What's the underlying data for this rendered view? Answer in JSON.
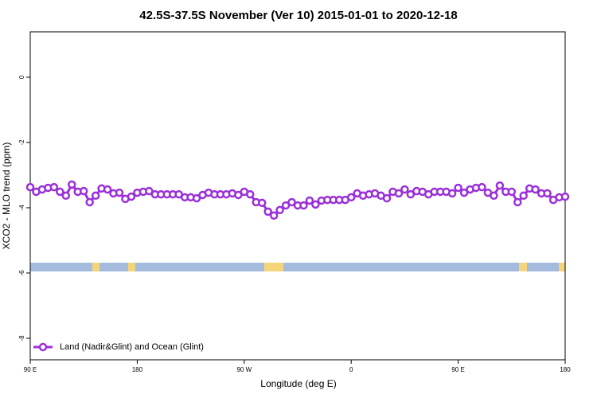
{
  "chart_data": {
    "type": "line",
    "title": "42.5S-37.5S November (Ver 10)   2015-01-01 to 2020-12-18",
    "x_label": "Longitude (deg E)",
    "y_label": "XCO2 - MLO trend (ppm)",
    "x": [
      90,
      95,
      100,
      105,
      110,
      115,
      120,
      125,
      130,
      135,
      140,
      145,
      150,
      155,
      160,
      165,
      170,
      175,
      180,
      185,
      190,
      195,
      200,
      205,
      210,
      215,
      220,
      225,
      230,
      235,
      240,
      245,
      250,
      255,
      260,
      265,
      270,
      275,
      280,
      285,
      290,
      295,
      300,
      305,
      310,
      315,
      320,
      325,
      330,
      335,
      340,
      345,
      350,
      355,
      360,
      365,
      370,
      375,
      380,
      385,
      390,
      395,
      400,
      405,
      410,
      415,
      420,
      425,
      430,
      435,
      440,
      445,
      450,
      455,
      460,
      465,
      470,
      475,
      480,
      485,
      490,
      495,
      500,
      505,
      510,
      515,
      520,
      525,
      530,
      535,
      540
    ],
    "series": [
      {
        "name": "Land (Nadir&Glint) and Ocean (Glint)",
        "color": "#9b30d9",
        "values": [
          -3.37,
          -3.51,
          -3.44,
          -3.39,
          -3.37,
          -3.51,
          -3.63,
          -3.29,
          -3.51,
          -3.49,
          -3.83,
          -3.63,
          -3.41,
          -3.44,
          -3.56,
          -3.54,
          -3.73,
          -3.66,
          -3.54,
          -3.51,
          -3.49,
          -3.59,
          -3.59,
          -3.59,
          -3.59,
          -3.59,
          -3.68,
          -3.68,
          -3.71,
          -3.61,
          -3.54,
          -3.59,
          -3.59,
          -3.59,
          -3.56,
          -3.61,
          -3.51,
          -3.59,
          -3.83,
          -3.85,
          -4.12,
          -4.24,
          -4.07,
          -3.93,
          -3.83,
          -3.93,
          -3.93,
          -3.78,
          -3.9,
          -3.78,
          -3.76,
          -3.76,
          -3.76,
          -3.76,
          -3.68,
          -3.56,
          -3.63,
          -3.59,
          -3.56,
          -3.63,
          -3.71,
          -3.51,
          -3.56,
          -3.44,
          -3.59,
          -3.49,
          -3.51,
          -3.59,
          -3.51,
          -3.51,
          -3.51,
          -3.56,
          -3.39,
          -3.54,
          -3.44,
          -3.39,
          -3.37,
          -3.54,
          -3.63,
          -3.32,
          -3.51,
          -3.51,
          -3.83,
          -3.63,
          -3.41,
          -3.44,
          -3.56,
          -3.56,
          -3.76,
          -3.68,
          -3.66
        ]
      }
    ],
    "xlim": [
      90,
      540
    ],
    "xticks": [
      {
        "value": 90,
        "label": "90 E"
      },
      180,
      {
        "value": 270,
        "label": "90 W"
      },
      {
        "value": 360,
        "label": "0"
      },
      {
        "value": 450,
        "label": "90 E"
      },
      {
        "value": 540,
        "label": "180"
      }
    ],
    "ylim": [
      -8.66,
      1.39
    ],
    "yticks": [
      0,
      -2,
      -4,
      -6,
      -8
    ],
    "legend": "bottomleft"
  }
}
